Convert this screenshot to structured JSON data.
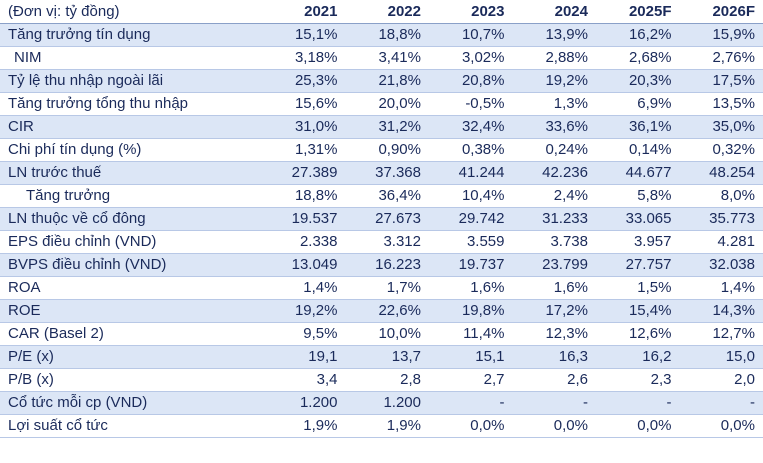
{
  "unit_label": "(Đơn vị: tỷ đồng)",
  "years": [
    "2021",
    "2022",
    "2023",
    "2024",
    "2025F",
    "2026F"
  ],
  "rows": [
    {
      "label": "Tăng trưởng tín dụng",
      "shaded": true,
      "indent": 0,
      "values": [
        "15,1%",
        "18,8%",
        "10,7%",
        "13,9%",
        "16,2%",
        "15,9%"
      ]
    },
    {
      "label": "NIM",
      "shaded": false,
      "indent": 1,
      "values": [
        "3,18%",
        "3,41%",
        "3,02%",
        "2,88%",
        "2,68%",
        "2,76%"
      ]
    },
    {
      "label": "Tỷ lệ thu nhập ngoài lãi",
      "shaded": true,
      "indent": 0,
      "values": [
        "25,3%",
        "21,8%",
        "20,8%",
        "19,2%",
        "20,3%",
        "17,5%"
      ]
    },
    {
      "label": "Tăng trưởng tổng thu nhập",
      "shaded": false,
      "indent": 0,
      "values": [
        "15,6%",
        "20,0%",
        "-0,5%",
        "1,3%",
        "6,9%",
        "13,5%"
      ]
    },
    {
      "label": "CIR",
      "shaded": true,
      "indent": 0,
      "values": [
        "31,0%",
        "31,2%",
        "32,4%",
        "33,6%",
        "36,1%",
        "35,0%"
      ]
    },
    {
      "label": "Chi phí tín dụng (%)",
      "shaded": false,
      "indent": 0,
      "values": [
        "1,31%",
        "0,90%",
        "0,38%",
        "0,24%",
        "0,14%",
        "0,32%"
      ]
    },
    {
      "label": "LN trước thuế",
      "shaded": true,
      "indent": 0,
      "values": [
        "27.389",
        "37.368",
        "41.244",
        "42.236",
        "44.677",
        "48.254"
      ]
    },
    {
      "label": "Tăng trưởng",
      "shaded": false,
      "indent": 2,
      "values": [
        "18,8%",
        "36,4%",
        "10,4%",
        "2,4%",
        "5,8%",
        "8,0%"
      ]
    },
    {
      "label": "LN thuộc về cổ đông",
      "shaded": true,
      "indent": 0,
      "values": [
        "19.537",
        "27.673",
        "29.742",
        "31.233",
        "33.065",
        "35.773"
      ]
    },
    {
      "label": "EPS điều chỉnh (VND)",
      "shaded": false,
      "indent": 0,
      "values": [
        "2.338",
        "3.312",
        "3.559",
        "3.738",
        "3.957",
        "4.281"
      ]
    },
    {
      "label": "BVPS điều chỉnh (VND)",
      "shaded": true,
      "indent": 0,
      "values": [
        "13.049",
        "16.223",
        "19.737",
        "23.799",
        "27.757",
        "32.038"
      ]
    },
    {
      "label": "ROA",
      "shaded": false,
      "indent": 0,
      "values": [
        "1,4%",
        "1,7%",
        "1,6%",
        "1,6%",
        "1,5%",
        "1,4%"
      ]
    },
    {
      "label": "ROE",
      "shaded": true,
      "indent": 0,
      "values": [
        "19,2%",
        "22,6%",
        "19,8%",
        "17,2%",
        "15,4%",
        "14,3%"
      ]
    },
    {
      "label": "CAR (Basel 2)",
      "shaded": false,
      "indent": 0,
      "values": [
        "9,5%",
        "10,0%",
        "11,4%",
        "12,3%",
        "12,6%",
        "12,7%"
      ]
    },
    {
      "label": "P/E (x)",
      "shaded": true,
      "indent": 0,
      "values": [
        "19,1",
        "13,7",
        "15,1",
        "16,3",
        "16,2",
        "15,0"
      ]
    },
    {
      "label": "P/B (x)",
      "shaded": false,
      "indent": 0,
      "values": [
        "3,4",
        "2,8",
        "2,7",
        "2,6",
        "2,3",
        "2,0"
      ]
    },
    {
      "label": "Cổ tức mỗi cp (VND)",
      "shaded": true,
      "indent": 0,
      "values": [
        "1.200",
        "1.200",
        "-",
        "-",
        "-",
        "-"
      ]
    },
    {
      "label": "Lợi suất cổ tức",
      "shaded": false,
      "indent": 0,
      "values": [
        "1,9%",
        "1,9%",
        "0,0%",
        "0,0%",
        "0,0%",
        "0,0%"
      ]
    }
  ],
  "colors": {
    "header_text": "#1a2a5a",
    "row_shade": "#dce6f6",
    "row_border": "#b8c8e6"
  }
}
